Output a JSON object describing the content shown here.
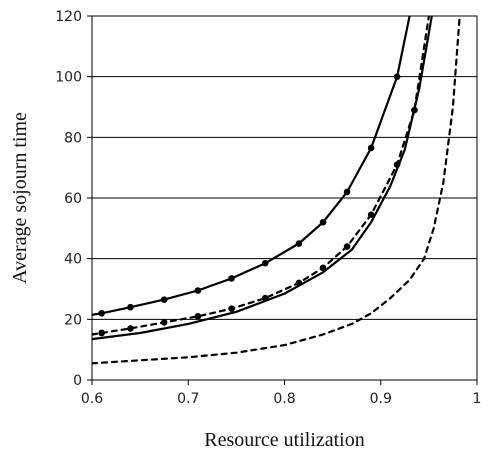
{
  "chart_data": {
    "type": "line",
    "title": "",
    "xlabel": "Resource utilization",
    "ylabel": "Average sojourn time",
    "xlim": [
      0.6,
      1.0
    ],
    "ylim": [
      0,
      120
    ],
    "x_ticks": [
      0.6,
      0.7,
      0.8,
      0.9,
      1.0
    ],
    "x_tick_labels": [
      "0.6",
      "0.7",
      "0.8",
      "0.9",
      "1"
    ],
    "y_ticks": [
      0,
      20,
      40,
      60,
      80,
      100,
      120
    ],
    "y_tick_labels": [
      "0",
      "20",
      "40",
      "60",
      "80",
      "100",
      "120"
    ],
    "grid": "horizontal",
    "legend": "none",
    "series": [
      {
        "style": "solid-markers",
        "x": [
          0.6,
          0.61,
          0.64,
          0.675,
          0.71,
          0.745,
          0.78,
          0.815,
          0.84,
          0.865,
          0.89,
          0.917,
          0.93
        ],
        "y": [
          21.5,
          22,
          24,
          26.5,
          29.5,
          33.5,
          38.5,
          45,
          52,
          62,
          76.5,
          100,
          120
        ],
        "markers_x": [
          0.61,
          0.64,
          0.675,
          0.71,
          0.745,
          0.78,
          0.815,
          0.84,
          0.865,
          0.89,
          0.917
        ],
        "markers_y": [
          22,
          24,
          26.5,
          29.5,
          33.5,
          38.5,
          45,
          52,
          62,
          76.5,
          100
        ]
      },
      {
        "style": "dashed-markers",
        "x": [
          0.6,
          0.61,
          0.64,
          0.675,
          0.71,
          0.745,
          0.78,
          0.815,
          0.84,
          0.865,
          0.89,
          0.917,
          0.935,
          0.95
        ],
        "y": [
          15,
          15.5,
          17,
          19,
          21,
          23.5,
          27,
          32,
          37,
          44,
          54.5,
          71,
          89,
          120
        ],
        "markers_x": [
          0.61,
          0.64,
          0.675,
          0.71,
          0.745,
          0.78,
          0.815,
          0.84,
          0.865,
          0.89,
          0.917,
          0.935
        ],
        "markers_y": [
          15.5,
          17,
          19,
          21,
          23.5,
          27,
          32,
          37,
          44,
          54.5,
          71,
          89
        ]
      },
      {
        "style": "solid",
        "x": [
          0.6,
          0.65,
          0.7,
          0.75,
          0.8,
          0.84,
          0.87,
          0.89,
          0.91,
          0.925,
          0.94,
          0.953
        ],
        "y": [
          13.5,
          15.5,
          18.5,
          22.5,
          28.5,
          35.5,
          43,
          52,
          64,
          76,
          96,
          120
        ]
      },
      {
        "style": "dashed",
        "x": [
          0.6,
          0.65,
          0.7,
          0.75,
          0.8,
          0.84,
          0.87,
          0.89,
          0.91,
          0.93,
          0.945,
          0.955,
          0.965,
          0.975,
          0.982
        ],
        "y": [
          5.5,
          6.5,
          7.5,
          9,
          11.5,
          15,
          18.5,
          22,
          27,
          33,
          40,
          50,
          65,
          90,
          120
        ]
      }
    ]
  }
}
